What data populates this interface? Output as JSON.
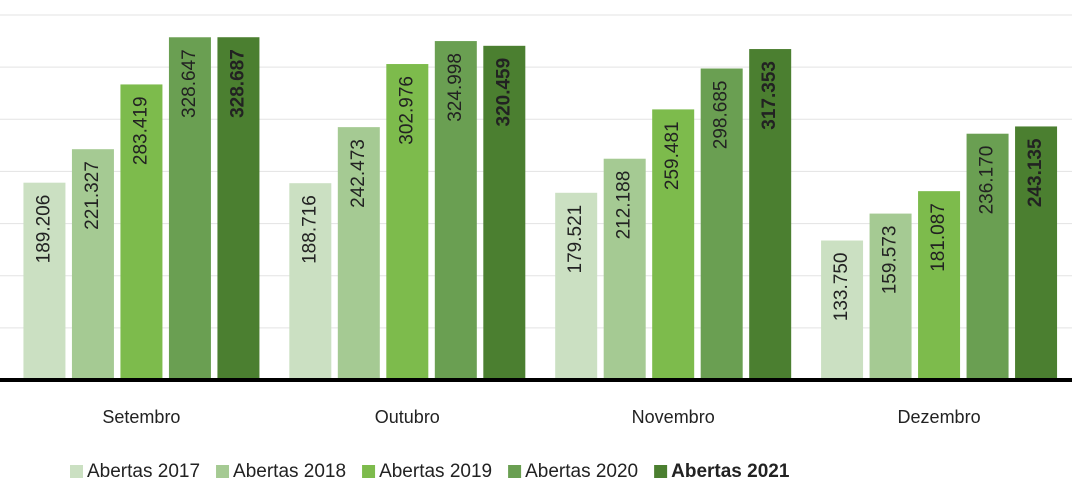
{
  "chart_data": {
    "type": "bar",
    "categories": [
      "Setembro",
      "Outubro",
      "Novembro",
      "Dezembro"
    ],
    "series": [
      {
        "name": "Abertas 2017",
        "color": "#cbe0c2",
        "values": [
          189206,
          188716,
          179521,
          133750
        ],
        "value_labels": [
          "189.206",
          "188.716",
          "179.521",
          "133.750"
        ]
      },
      {
        "name": "Abertas 2018",
        "color": "#a5ca93",
        "values": [
          221327,
          242473,
          212188,
          159573
        ],
        "value_labels": [
          "221.327",
          "242.473",
          "212.188",
          "159.573"
        ]
      },
      {
        "name": "Abertas 2019",
        "color": "#7dbb4c",
        "values": [
          283419,
          302976,
          259481,
          181087
        ],
        "value_labels": [
          "283.419",
          "302.976",
          "259.481",
          "181.087"
        ]
      },
      {
        "name": "Abertas 2020",
        "color": "#6a9f52",
        "values": [
          328647,
          324998,
          298685,
          236170
        ],
        "value_labels": [
          "328.647",
          "324.998",
          "298.685",
          "236.170"
        ]
      },
      {
        "name": "Abertas 2021",
        "color": "#4b7f30",
        "bold": true,
        "values": [
          328687,
          320459,
          317353,
          243135
        ],
        "value_labels": [
          "328.687",
          "320.459",
          "317.353",
          "243.135"
        ]
      }
    ],
    "ylim": [
      0,
      350000
    ],
    "yticks": [
      0,
      50000,
      100000,
      150000,
      200000,
      250000,
      300000,
      350000
    ],
    "grid": true,
    "legend": "bottom"
  }
}
